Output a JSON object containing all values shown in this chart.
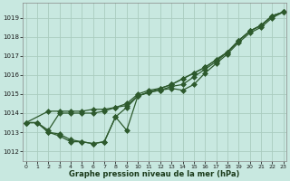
{
  "title": "Graphe pression niveau de la mer (hPa)",
  "bg_color": "#c8e8e0",
  "grid_color": "#aaccbf",
  "line_color": "#2d5a2d",
  "ylim": [
    1011.5,
    1019.8
  ],
  "yticks": [
    1012,
    1013,
    1014,
    1015,
    1016,
    1017,
    1018,
    1019
  ],
  "xlim": [
    -0.3,
    23.3
  ],
  "line1_x": [
    0,
    1,
    2,
    3,
    4,
    5,
    6,
    7,
    8,
    9,
    10,
    11,
    12,
    13,
    14,
    15,
    16,
    17,
    18,
    19,
    20,
    21,
    22,
    23
  ],
  "line1_y": [
    1013.5,
    1013.5,
    1013.0,
    1012.8,
    1012.5,
    1012.5,
    1012.4,
    1012.5,
    1013.8,
    1013.1,
    1014.9,
    1015.1,
    1015.2,
    1015.3,
    1015.2,
    1015.5,
    1016.1,
    1016.6,
    1017.1,
    1017.7,
    1018.2,
    1018.5,
    1019.0,
    1019.3
  ],
  "line2_x": [
    0,
    1,
    2,
    3,
    4,
    5,
    6,
    7,
    8,
    9,
    10,
    11,
    12,
    13,
    14,
    15,
    16,
    17,
    18,
    19,
    20,
    21,
    22,
    23
  ],
  "line2_y": [
    1013.5,
    1013.5,
    1013.0,
    1012.9,
    1012.6,
    1012.5,
    1012.4,
    1012.5,
    1013.8,
    1014.3,
    1014.9,
    1015.1,
    1015.2,
    1015.4,
    1015.5,
    1015.9,
    1016.3,
    1016.7,
    1017.2,
    1017.8,
    1018.3,
    1018.6,
    1019.1,
    1019.3
  ],
  "line3_x": [
    0,
    1,
    2,
    3,
    4,
    5,
    6,
    7,
    8,
    9,
    10,
    11,
    12,
    13,
    14,
    15,
    16,
    17,
    18,
    19,
    20,
    21,
    22,
    23
  ],
  "line3_y": [
    1013.5,
    1013.5,
    1013.1,
    1014.0,
    1014.0,
    1014.0,
    1014.0,
    1014.1,
    1014.3,
    1014.4,
    1014.9,
    1015.1,
    1015.3,
    1015.5,
    1015.8,
    1016.1,
    1016.4,
    1016.8,
    1017.2,
    1017.8,
    1018.3,
    1018.6,
    1019.1,
    1019.3
  ],
  "line4_x": [
    0,
    2,
    3,
    4,
    5,
    6,
    7,
    8,
    9,
    10,
    11,
    12,
    13,
    14,
    15,
    16,
    17,
    18,
    19,
    20,
    21,
    22,
    23
  ],
  "line4_y": [
    1013.5,
    1014.1,
    1014.1,
    1014.1,
    1014.1,
    1014.2,
    1014.2,
    1014.3,
    1014.5,
    1015.0,
    1015.2,
    1015.3,
    1015.5,
    1015.8,
    1016.1,
    1016.4,
    1016.8,
    1017.2,
    1017.8,
    1018.3,
    1018.6,
    1019.1,
    1019.3
  ],
  "xlabel_ticklabels": [
    "0",
    "1",
    "2",
    "3",
    "4",
    "5",
    "6",
    "7",
    "8",
    "9",
    "10",
    "11",
    "12",
    "13",
    "14",
    "15",
    "16",
    "17",
    "18",
    "19",
    "20",
    "21",
    "22",
    "23"
  ]
}
